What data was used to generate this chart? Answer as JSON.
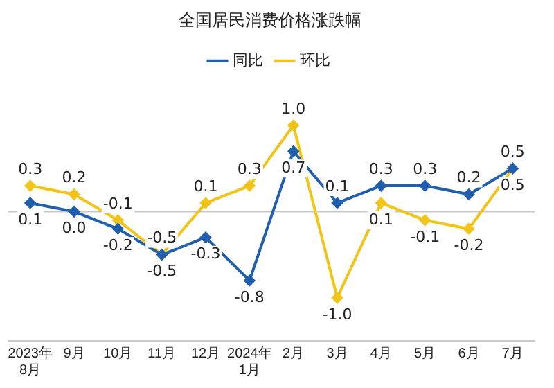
{
  "chart_data": {
    "type": "line",
    "title": "全国居民消费价格涨跌幅",
    "categories": [
      "2023年\n8月",
      "9月",
      "10月",
      "11月",
      "12月",
      "2024年\n1月",
      "2月",
      "3月",
      "4月",
      "5月",
      "6月",
      "7月"
    ],
    "series": [
      {
        "name": "同比",
        "color": "#1f5fad",
        "values": [
          0.1,
          0.0,
          -0.2,
          -0.5,
          -0.3,
          -0.8,
          0.7,
          0.1,
          0.3,
          0.3,
          0.2,
          0.5
        ],
        "value_labels": [
          "0.1",
          "0.0",
          "-0.2",
          "-0.5",
          "-0.3",
          "-0.8",
          "0.7",
          "0.1",
          "0.3",
          "0.3",
          "0.2",
          "0.5"
        ]
      },
      {
        "name": "环比",
        "color": "#f2c318",
        "values": [
          0.3,
          0.2,
          -0.1,
          -0.5,
          0.1,
          0.3,
          1.0,
          -1.0,
          0.1,
          -0.1,
          -0.2,
          0.5
        ],
        "value_labels": [
          "0.3",
          "0.2",
          "-0.1",
          "-0.5",
          "0.1",
          "0.3",
          "1.0",
          "-1.0",
          "0.1",
          "-0.1",
          "-0.2",
          "0.5"
        ]
      }
    ],
    "ref_lines": [
      {
        "axis": "y",
        "value": 0,
        "color": "#c8c8c8"
      }
    ],
    "legend": "top",
    "marker": "diamond",
    "line_style": "solid",
    "grid": false,
    "tick_labels": "x"
  }
}
